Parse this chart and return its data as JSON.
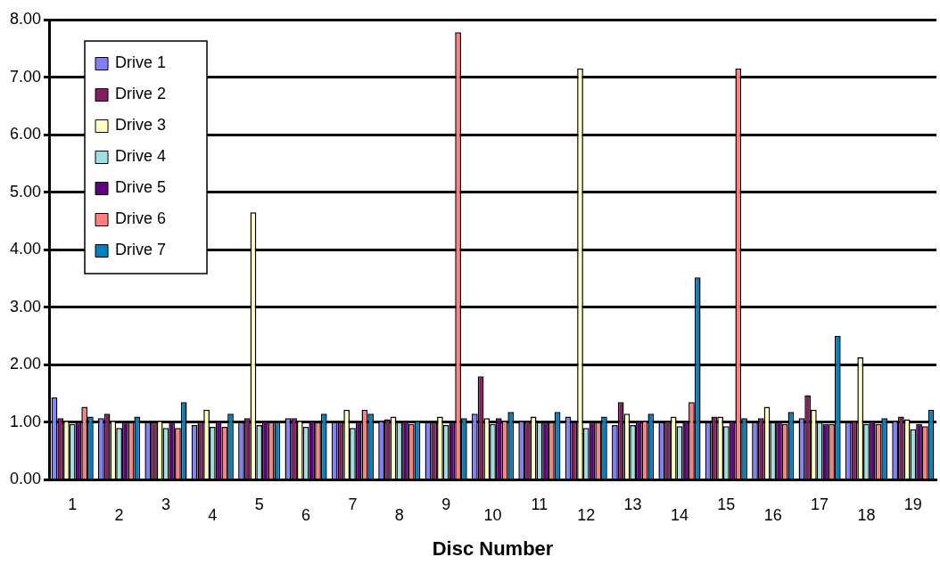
{
  "chart_data": {
    "type": "bar",
    "xlabel": "Disc Number",
    "categories": [
      "1",
      "2",
      "3",
      "4",
      "5",
      "6",
      "7",
      "8",
      "9",
      "10",
      "11",
      "12",
      "13",
      "14",
      "15",
      "16",
      "17",
      "18",
      "19"
    ],
    "series": [
      {
        "name": "Drive 1",
        "color": "#8080ff",
        "values": [
          1.43,
          1.07,
          1.0,
          0.95,
          1.0,
          1.07,
          1.0,
          1.03,
          1.0,
          1.15,
          1.03,
          1.1,
          0.95,
          1.0,
          1.0,
          1.0,
          1.07,
          1.0,
          1.03
        ]
      },
      {
        "name": "Drive 2",
        "color": "#802060",
        "values": [
          1.07,
          1.15,
          1.0,
          1.0,
          1.07,
          1.07,
          1.0,
          1.05,
          1.0,
          1.8,
          1.03,
          1.0,
          1.35,
          1.03,
          1.1,
          1.07,
          1.47,
          1.03,
          1.1
        ]
      },
      {
        "name": "Drive 3",
        "color": "#ffffc0",
        "values": [
          1.03,
          1.03,
          1.03,
          1.22,
          4.65,
          1.03,
          1.22,
          1.1,
          1.1,
          1.07,
          1.1,
          7.15,
          1.15,
          1.1,
          1.1,
          1.27,
          1.22,
          2.13,
          1.05
        ]
      },
      {
        "name": "Drive 4",
        "color": "#a0e0e0",
        "values": [
          0.97,
          0.9,
          0.9,
          0.92,
          0.95,
          0.92,
          0.9,
          1.0,
          0.95,
          0.97,
          1.0,
          0.9,
          0.95,
          0.93,
          0.93,
          1.0,
          1.0,
          0.97,
          0.88
        ]
      },
      {
        "name": "Drive 5",
        "color": "#600080",
        "values": [
          1.0,
          1.0,
          1.0,
          1.03,
          1.03,
          1.03,
          1.0,
          1.03,
          1.0,
          1.07,
          1.0,
          1.0,
          1.03,
          1.03,
          1.03,
          1.0,
          0.97,
          1.03,
          0.97
        ]
      },
      {
        "name": "Drive 6",
        "color": "#ff8080",
        "values": [
          1.27,
          1.0,
          0.9,
          0.92,
          1.0,
          1.0,
          1.22,
          0.97,
          7.78,
          1.03,
          1.0,
          1.0,
          1.03,
          1.35,
          7.15,
          0.97,
          0.97,
          0.97,
          0.93
        ]
      },
      {
        "name": "Drive 7",
        "color": "#0080c0",
        "values": [
          1.1,
          1.1,
          1.35,
          1.15,
          1.0,
          1.15,
          1.15,
          1.03,
          1.07,
          1.18,
          1.18,
          1.1,
          1.15,
          3.52,
          1.07,
          1.18,
          2.5,
          1.07,
          1.22
        ]
      }
    ],
    "ylim": [
      0,
      8
    ],
    "yticks": [
      {
        "value": 0,
        "label": "0.00"
      },
      {
        "value": 1,
        "label": "1.00"
      },
      {
        "value": 2,
        "label": "2.00"
      },
      {
        "value": 3,
        "label": "3.00"
      },
      {
        "value": 4,
        "label": "4.00"
      },
      {
        "value": 5,
        "label": "5.00"
      },
      {
        "value": 6,
        "label": "6.00"
      },
      {
        "value": 7,
        "label": "7.00"
      },
      {
        "value": 8,
        "label": "8.00"
      }
    ],
    "grid": "y",
    "legend": "top left"
  }
}
